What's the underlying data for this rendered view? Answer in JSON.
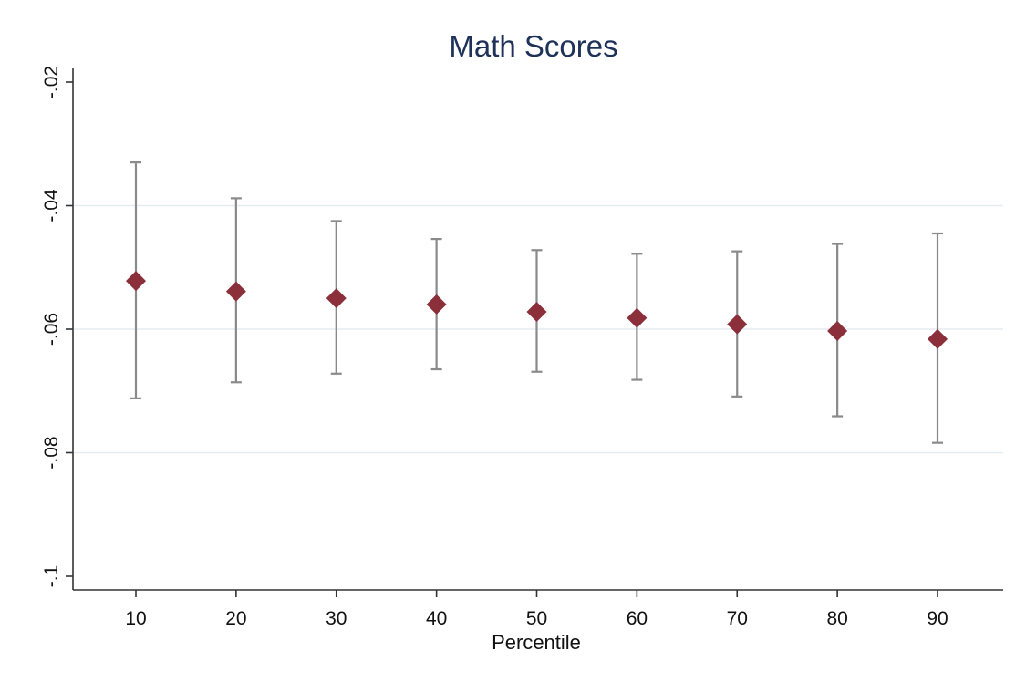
{
  "chart_data": {
    "type": "scatter",
    "title": "Math Scores",
    "xlabel": "Percentile",
    "ylabel": "",
    "x": [
      10,
      20,
      30,
      40,
      50,
      60,
      70,
      80,
      90
    ],
    "estimate": [
      -0.0522,
      -0.0539,
      -0.055,
      -0.056,
      -0.0572,
      -0.0582,
      -0.0592,
      -0.0603,
      -0.0616
    ],
    "ci_upper": [
      -0.033,
      -0.0388,
      -0.0425,
      -0.0454,
      -0.0472,
      -0.0478,
      -0.0474,
      -0.0462,
      -0.0445
    ],
    "ci_lower": [
      -0.0712,
      -0.0686,
      -0.0672,
      -0.0665,
      -0.0669,
      -0.0682,
      -0.0709,
      -0.0741,
      -0.0784
    ],
    "xticks": [
      10,
      20,
      30,
      40,
      50,
      60,
      70,
      80,
      90
    ],
    "xtick_labels": [
      "10",
      "20",
      "30",
      "40",
      "50",
      "60",
      "70",
      "80",
      "90"
    ],
    "yticks": [
      -0.02,
      -0.04,
      -0.06,
      -0.08,
      -0.1
    ],
    "ytick_labels": [
      "-.02",
      "-.04",
      "-.06",
      "-.08",
      "-.1"
    ],
    "ylim": [
      -0.1,
      -0.02
    ],
    "xlim": [
      10,
      90
    ],
    "grid": "horizontal",
    "legend": "none",
    "colors": {
      "marker": "#8b2f3a",
      "ci": "#8a8a8a",
      "title": "#1e3158",
      "grid": "#e3ecef"
    }
  }
}
